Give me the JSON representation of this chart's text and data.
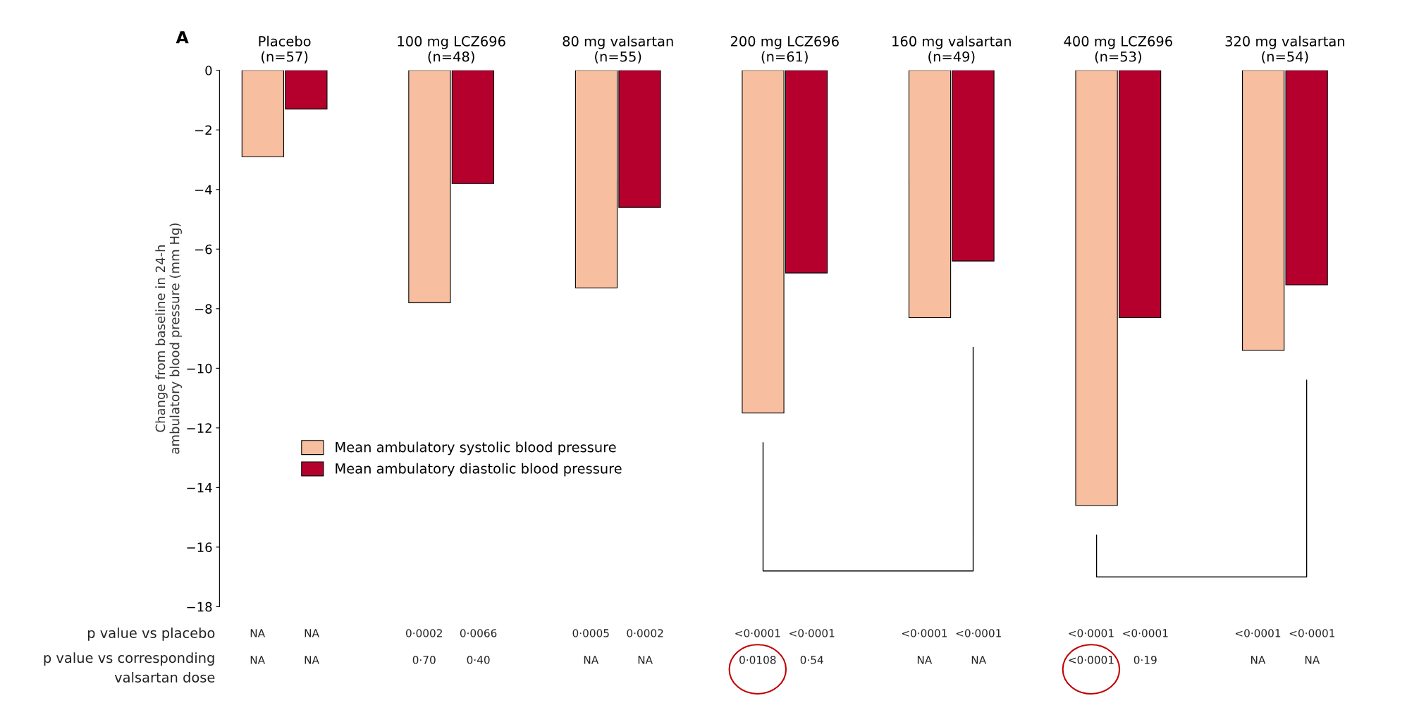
{
  "chart_data": {
    "type": "bar",
    "ylabel": "Change from baseline in 24-h\nambulatory blood pressure (mm Hg)",
    "categories": [
      "Placebo\n(n=57)",
      "100 mg LCZ696\n(n=48)",
      "80 mg valsartan\n(n=55)",
      "200 mg LCZ696\n(n=61)",
      "160 mg valsartan\n(n=49)",
      "400 mg LCZ696\n(n=53)",
      "320 mg valsartan\n(n=54)"
    ],
    "series": [
      {
        "name": "Mean ambulatory systolic blood pressure",
        "color": "#f7bfa0",
        "values": [
          -2.9,
          -7.8,
          -7.3,
          -11.5,
          -8.3,
          -14.6,
          -9.4
        ]
      },
      {
        "name": "Mean ambulatory diastolic blood pressure",
        "color": "#b5002e",
        "values": [
          -1.3,
          -3.8,
          -4.6,
          -6.8,
          -6.4,
          -8.3,
          -7.2
        ]
      }
    ],
    "ylim": [
      -18,
      0
    ],
    "yticks": [
      -18,
      -16,
      -14,
      -12,
      -10,
      -8,
      -6,
      -4,
      -2,
      0
    ],
    "legend": "left",
    "grid": false,
    "annotations": [
      "A",
      "p value vs placebo",
      "NA",
      "NA",
      "0·0002",
      "0·0066",
      "0·0005",
      "0·0002",
      "<0·0001",
      "<0·0001",
      "<0·0001",
      "<0·0001",
      "<0·0001",
      "<0·0001",
      "<0·0001",
      "<0·0001",
      "p value vs corresponding\nvalsartan dose",
      "NA",
      "NA",
      "0·70",
      "0·40",
      "NA",
      "NA",
      "0·0108",
      "0·54",
      "NA",
      "NA",
      "<0·0001",
      "0·19",
      "NA",
      "NA"
    ]
  }
}
